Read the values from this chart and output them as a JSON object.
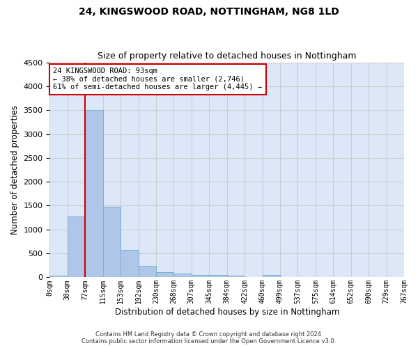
{
  "title": "24, KINGSWOOD ROAD, NOTTINGHAM, NG8 1LD",
  "subtitle": "Size of property relative to detached houses in Nottingham",
  "xlabel": "Distribution of detached houses by size in Nottingham",
  "ylabel": "Number of detached properties",
  "bar_values": [
    40,
    1280,
    3500,
    1480,
    575,
    240,
    115,
    80,
    55,
    45,
    35,
    0,
    45,
    0,
    0,
    0,
    0,
    0,
    0,
    0
  ],
  "bar_labels": [
    "0sqm",
    "38sqm",
    "77sqm",
    "115sqm",
    "153sqm",
    "192sqm",
    "230sqm",
    "268sqm",
    "307sqm",
    "345sqm",
    "384sqm",
    "422sqm",
    "460sqm",
    "499sqm",
    "537sqm",
    "575sqm",
    "614sqm",
    "652sqm",
    "690sqm",
    "729sqm",
    "767sqm"
  ],
  "bar_color": "#aec6e8",
  "bar_edge_color": "#7aafd4",
  "ylim": [
    0,
    4500
  ],
  "yticks": [
    0,
    500,
    1000,
    1500,
    2000,
    2500,
    3000,
    3500,
    4000,
    4500
  ],
  "red_line_bin": 2,
  "annotation_text": "24 KINGSWOOD ROAD: 93sqm\n← 38% of detached houses are smaller (2,746)\n61% of semi-detached houses are larger (4,445) →",
  "annotation_box_color": "#ffffff",
  "annotation_box_edge": "#cc0000",
  "red_line_color": "#cc0000",
  "grid_color": "#cccccc",
  "background_color": "#dce8f8",
  "footer_line1": "Contains HM Land Registry data © Crown copyright and database right 2024.",
  "footer_line2": "Contains public sector information licensed under the Open Government Licence v3.0."
}
